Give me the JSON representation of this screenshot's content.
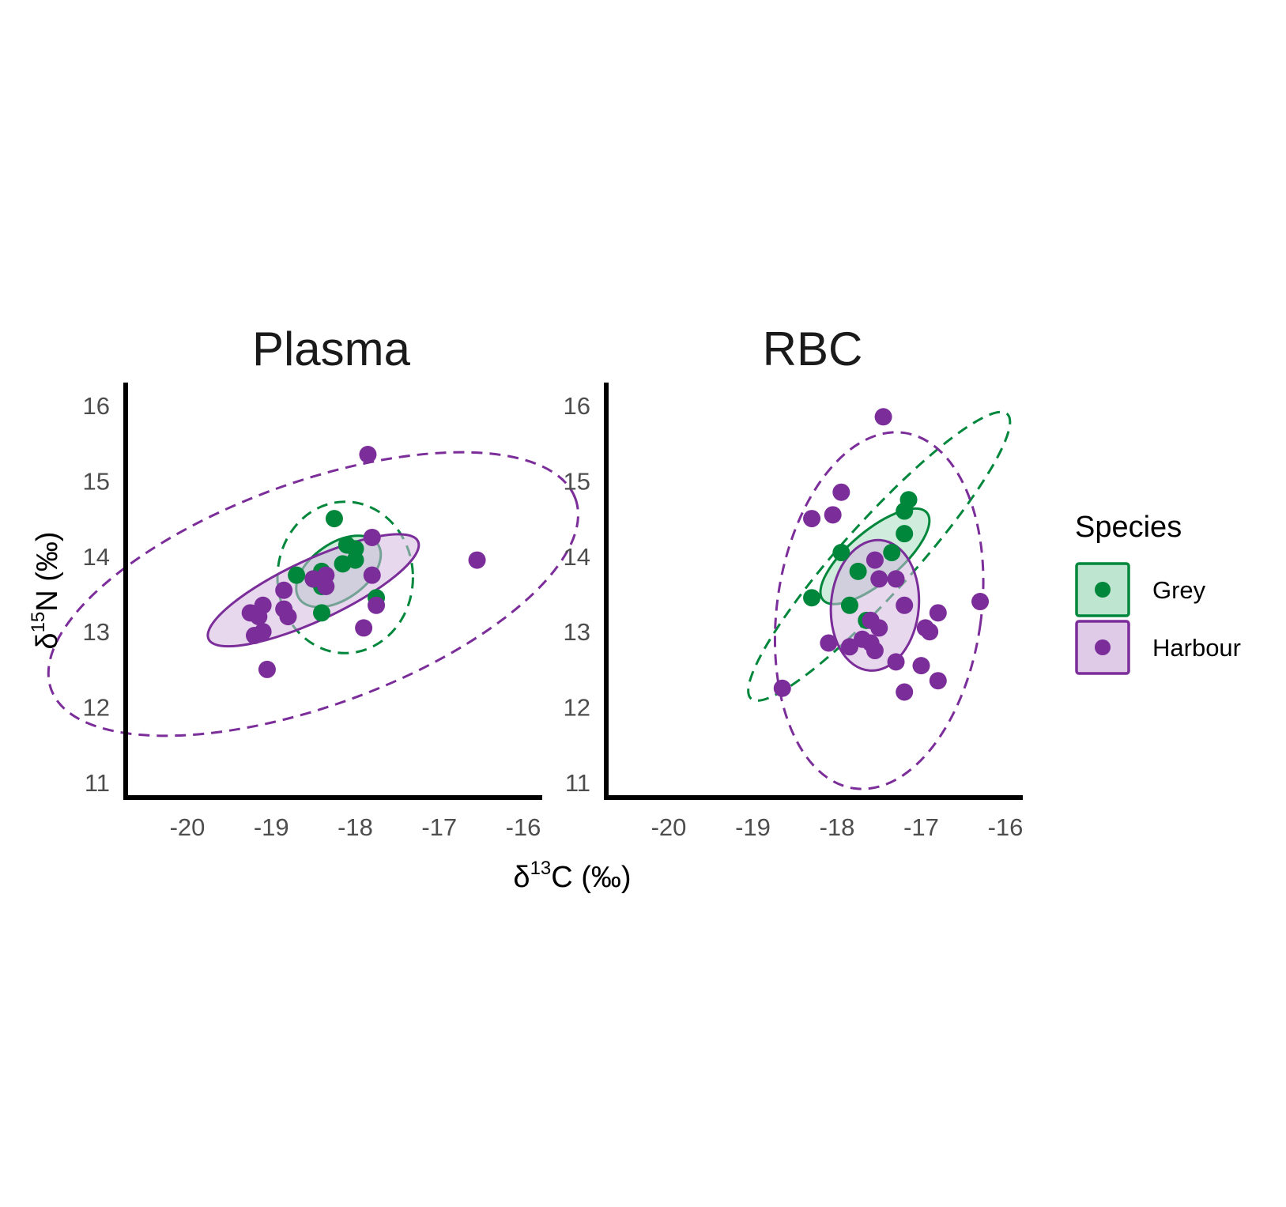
{
  "chart_data": {
    "type": "scatter",
    "xlabel": {
      "prefix": "δ",
      "sup": "13",
      "suffix": "C (‰)"
    },
    "ylabel": {
      "prefix": "δ",
      "sup": "15",
      "suffix": "N (‰)"
    },
    "xlim": [
      -20.7,
      -15.7
    ],
    "ylim": [
      10.7,
      16.3
    ],
    "xticks": [
      -20,
      -19,
      -18,
      -17,
      -16
    ],
    "yticks": [
      11,
      12,
      13,
      14,
      15,
      16
    ],
    "legend": {
      "title": "Species",
      "placement": "right",
      "entries": [
        {
          "label": "Grey",
          "color": "#00873C",
          "fill": "#a8dcbf"
        },
        {
          "label": "Harbour",
          "color": "#7B2D99",
          "fill": "#d4b8df"
        }
      ]
    },
    "panels": [
      {
        "title": "Plasma",
        "series": [
          {
            "name": "Grey",
            "color": "#00873C",
            "points": [
              [
                -18.25,
                14.5
              ],
              [
                -18.1,
                14.15
              ],
              [
                -18.0,
                14.1
              ],
              [
                -18.0,
                13.95
              ],
              [
                -18.15,
                13.9
              ],
              [
                -18.4,
                13.8
              ],
              [
                -18.7,
                13.75
              ],
              [
                -18.5,
                13.7
              ],
              [
                -18.4,
                13.6
              ],
              [
                -17.75,
                13.45
              ],
              [
                -18.4,
                13.25
              ]
            ]
          },
          {
            "name": "Harbour",
            "color": "#7B2D99",
            "points": [
              [
                -17.85,
                15.35
              ],
              [
                -17.8,
                14.25
              ],
              [
                -17.8,
                13.75
              ],
              [
                -18.35,
                13.75
              ],
              [
                -18.5,
                13.7
              ],
              [
                -18.35,
                13.6
              ],
              [
                -18.85,
                13.55
              ],
              [
                -17.75,
                13.35
              ],
              [
                -19.1,
                13.35
              ],
              [
                -18.85,
                13.3
              ],
              [
                -18.8,
                13.2
              ],
              [
                -19.25,
                13.25
              ],
              [
                -19.15,
                13.2
              ],
              [
                -17.9,
                13.05
              ],
              [
                -19.1,
                13.0
              ],
              [
                -19.2,
                12.95
              ],
              [
                -19.05,
                12.5
              ],
              [
                -16.55,
                13.95
              ]
            ]
          }
        ],
        "ellipses": [
          {
            "series": "Grey",
            "style": "dashed",
            "cx": -18.12,
            "cy": 13.72,
            "rx": 0.85,
            "ry": 0.95,
            "angle_deg": 0
          },
          {
            "series": "Harbour",
            "style": "dashed",
            "cx": -18.5,
            "cy": 13.5,
            "rx": 3.5,
            "ry": 1.4,
            "angle_deg": 20
          },
          {
            "series": "Grey",
            "style": "solid",
            "cx": -18.2,
            "cy": 13.8,
            "rx": 0.6,
            "ry": 0.35,
            "angle_deg": 35
          },
          {
            "series": "Harbour",
            "style": "solid",
            "cx": -18.5,
            "cy": 13.55,
            "rx": 1.45,
            "ry": 0.38,
            "angle_deg": 25
          }
        ]
      },
      {
        "title": "RBC",
        "series": [
          {
            "name": "Grey",
            "color": "#00873C",
            "points": [
              [
                -17.15,
                14.75
              ],
              [
                -17.2,
                14.6
              ],
              [
                -17.2,
                14.3
              ],
              [
                -17.95,
                14.05
              ],
              [
                -17.35,
                14.05
              ],
              [
                -17.75,
                13.8
              ],
              [
                -17.85,
                13.35
              ],
              [
                -18.3,
                13.45
              ],
              [
                -17.65,
                13.15
              ]
            ]
          },
          {
            "name": "Harbour",
            "color": "#7B2D99",
            "points": [
              [
                -17.45,
                15.85
              ],
              [
                -17.95,
                14.85
              ],
              [
                -18.05,
                14.55
              ],
              [
                -18.3,
                14.5
              ],
              [
                -17.55,
                13.95
              ],
              [
                -17.3,
                13.7
              ],
              [
                -17.5,
                13.7
              ],
              [
                -17.2,
                13.35
              ],
              [
                -16.8,
                13.25
              ],
              [
                -16.3,
                13.4
              ],
              [
                -17.6,
                13.15
              ],
              [
                -17.5,
                13.05
              ],
              [
                -17.7,
                12.9
              ],
              [
                -17.6,
                12.85
              ],
              [
                -17.85,
                12.8
              ],
              [
                -18.1,
                12.85
              ],
              [
                -17.55,
                12.75
              ],
              [
                -17.3,
                12.6
              ],
              [
                -17.0,
                12.55
              ],
              [
                -16.9,
                13.0
              ],
              [
                -16.95,
                13.05
              ],
              [
                -16.8,
                12.35
              ],
              [
                -17.2,
                12.2
              ],
              [
                -18.65,
                12.25
              ]
            ]
          }
        ],
        "ellipses": [
          {
            "series": "Grey",
            "style": "dashed",
            "cx": -17.5,
            "cy": 14.0,
            "rx": 2.4,
            "ry": 0.45,
            "angle_deg": 48
          },
          {
            "series": "Harbour",
            "style": "dashed",
            "cx": -17.5,
            "cy": 13.28,
            "rx": 1.28,
            "ry": 2.25,
            "angle_deg": -8
          },
          {
            "series": "Grey",
            "style": "solid",
            "cx": -17.55,
            "cy": 14.0,
            "rx": 0.85,
            "ry": 0.32,
            "angle_deg": 40
          },
          {
            "series": "Harbour",
            "style": "solid",
            "cx": -17.55,
            "cy": 13.35,
            "rx": 0.55,
            "ry": 0.82,
            "angle_deg": -5
          }
        ]
      }
    ]
  }
}
